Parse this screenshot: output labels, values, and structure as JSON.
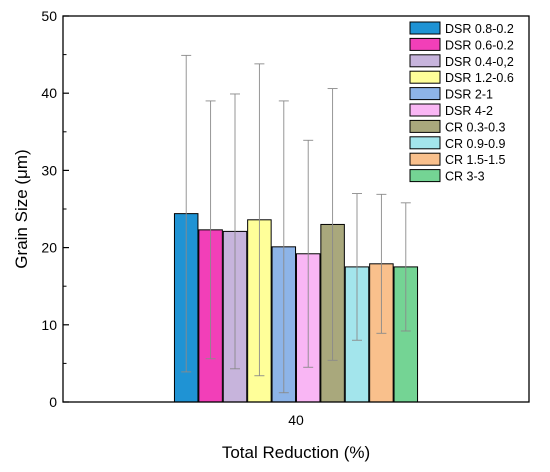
{
  "chart_data": {
    "type": "bar",
    "categories": [
      "40"
    ],
    "xlabel": "Total Reduction (%)",
    "ylabel": "Grain Size (μm)",
    "ylim": [
      0,
      50
    ],
    "yticks": [
      0,
      10,
      20,
      30,
      40,
      50
    ],
    "legend_position": "top-right",
    "grid": false,
    "series": [
      {
        "name": "DSR 0.8-0.2",
        "value": 24.4,
        "error": 20.5,
        "color": "#1f93d4"
      },
      {
        "name": "DSR 0.6-0.2",
        "value": 22.3,
        "error": 16.7,
        "color": "#f23fb8"
      },
      {
        "name": "DSR 0.4-0,2",
        "value": 22.1,
        "error": 17.8,
        "color": "#c7b4dc"
      },
      {
        "name": "DSR 1.2-0.6",
        "value": 23.6,
        "error": 20.2,
        "color": "#ffff99"
      },
      {
        "name": "DSR 2-1",
        "value": 20.1,
        "error": 18.9,
        "color": "#8db4e8"
      },
      {
        "name": "DSR 4-2",
        "value": 19.2,
        "error": 14.7,
        "color": "#f9b6f4"
      },
      {
        "name": "CR 0.3-0.3",
        "value": 23.0,
        "error": 17.6,
        "color": "#a9a87c"
      },
      {
        "name": "CR 0.9-0.9",
        "value": 17.5,
        "error": 9.5,
        "color": "#a3e5ec"
      },
      {
        "name": "CR 1.5-1.5",
        "value": 17.9,
        "error": 9.0,
        "color": "#f9c08c"
      },
      {
        "name": "CR  3-3",
        "value": 17.5,
        "error": 8.3,
        "color": "#74d494"
      }
    ]
  }
}
